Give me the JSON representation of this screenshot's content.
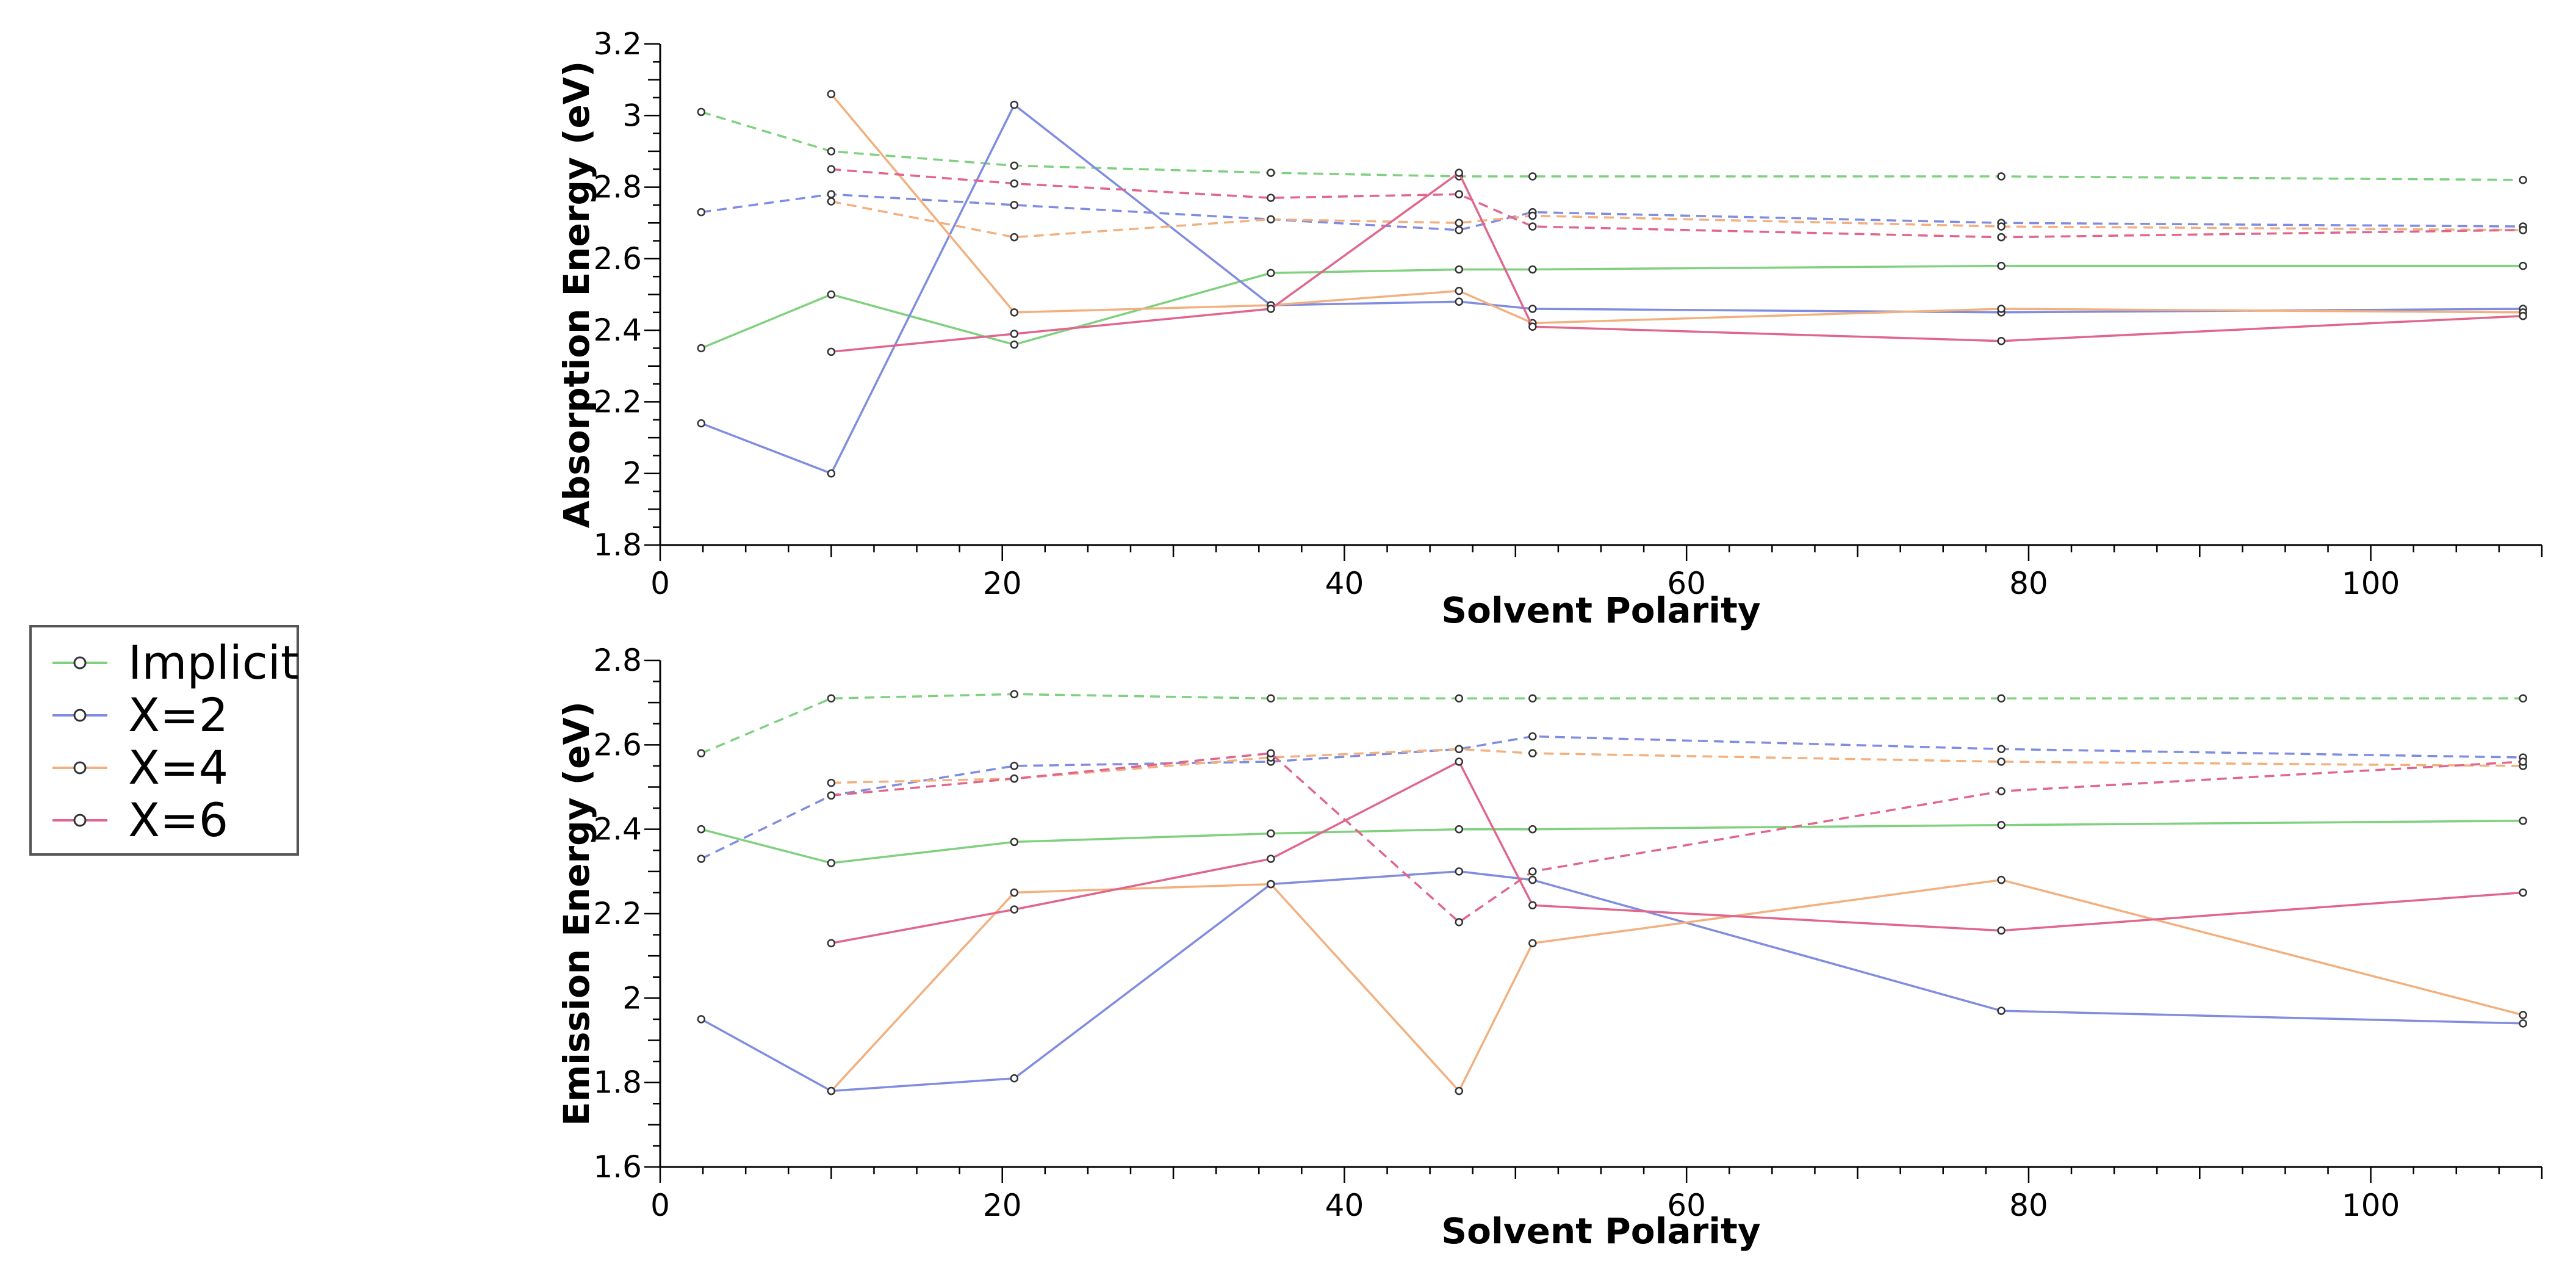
{
  "legend": {
    "entries": [
      {
        "name": "Implicit",
        "color": "#7fd07f"
      },
      {
        "name": "X=2",
        "color": "#7f8ce0"
      },
      {
        "name": "X=4",
        "color": "#f2b07f"
      },
      {
        "name": "X=6",
        "color": "#e0668c"
      }
    ]
  },
  "chart_data": [
    {
      "type": "line",
      "title": "",
      "xlabel": "Solvent Polarity",
      "ylabel": "Absorption Energy (eV)",
      "xlim": [
        0,
        110
      ],
      "ylim": [
        1.8,
        3.2
      ],
      "xticks": [
        0,
        20,
        40,
        60,
        80,
        100
      ],
      "yticks": [
        1.8,
        2,
        2.2,
        2.4,
        2.6,
        2.8,
        3,
        3.2
      ],
      "ytick_labels": [
        "1.8",
        "2",
        "2.2",
        "2.4",
        "2.6",
        "2.8",
        "3",
        "3.2"
      ],
      "series": [
        {
          "name": "Implicit",
          "style": "solid",
          "color": "#7fd07f",
          "x": [
            2.4,
            10.0,
            20.7,
            35.7,
            46.7,
            51.0,
            78.4,
            108.9
          ],
          "y": [
            2.35,
            2.5,
            2.36,
            2.56,
            2.57,
            2.57,
            2.58,
            2.58
          ]
        },
        {
          "name": "Implicit",
          "style": "dashed",
          "color": "#7fd07f",
          "x": [
            2.4,
            10.0,
            20.7,
            35.7,
            46.7,
            51.0,
            78.4,
            108.9
          ],
          "y": [
            3.01,
            2.9,
            2.86,
            2.84,
            2.83,
            2.83,
            2.83,
            2.82
          ]
        },
        {
          "name": "X=2",
          "style": "solid",
          "color": "#7f8ce0",
          "x": [
            2.4,
            10.0,
            20.7,
            35.7,
            46.7,
            51.0,
            78.4,
            108.9
          ],
          "y": [
            2.14,
            2.0,
            3.03,
            2.47,
            2.48,
            2.46,
            2.45,
            2.46
          ]
        },
        {
          "name": "X=2",
          "style": "dashed",
          "color": "#7f8ce0",
          "x": [
            2.4,
            10.0,
            20.7,
            35.7,
            46.7,
            51.0,
            78.4,
            108.9
          ],
          "y": [
            2.73,
            2.78,
            2.75,
            2.71,
            2.68,
            2.73,
            2.7,
            2.69
          ]
        },
        {
          "name": "X=4",
          "style": "solid",
          "color": "#f2b07f",
          "x": [
            10.0,
            20.7,
            35.7,
            46.7,
            51.0,
            78.4,
            108.9
          ],
          "y": [
            3.06,
            2.45,
            2.47,
            2.51,
            2.42,
            2.46,
            2.45
          ]
        },
        {
          "name": "X=4",
          "style": "dashed",
          "color": "#f2b07f",
          "x": [
            10.0,
            20.7,
            35.7,
            46.7,
            51.0,
            78.4,
            108.9
          ],
          "y": [
            2.76,
            2.66,
            2.71,
            2.7,
            2.72,
            2.69,
            2.68
          ]
        },
        {
          "name": "X=6",
          "style": "solid",
          "color": "#e0668c",
          "x": [
            10.0,
            20.7,
            35.7,
            46.7,
            51.0,
            78.4,
            108.9
          ],
          "y": [
            2.34,
            2.39,
            2.46,
            2.84,
            2.41,
            2.37,
            2.44
          ]
        },
        {
          "name": "X=6",
          "style": "dashed",
          "color": "#e0668c",
          "x": [
            10.0,
            20.7,
            35.7,
            46.7,
            51.0,
            78.4,
            108.9
          ],
          "y": [
            2.85,
            2.81,
            2.77,
            2.78,
            2.69,
            2.66,
            2.68
          ]
        }
      ]
    },
    {
      "type": "line",
      "title": "",
      "xlabel": "Solvent Polarity",
      "ylabel": "Emission Energy (eV)",
      "xlim": [
        0,
        110
      ],
      "ylim": [
        1.6,
        2.8
      ],
      "xticks": [
        0,
        20,
        40,
        60,
        80,
        100
      ],
      "yticks": [
        1.6,
        1.8,
        2,
        2.2,
        2.4,
        2.6,
        2.8
      ],
      "ytick_labels": [
        "1.6",
        "1.8",
        "2",
        "2.2",
        "2.4",
        "2.6",
        "2.8"
      ],
      "series": [
        {
          "name": "Implicit",
          "style": "solid",
          "color": "#7fd07f",
          "x": [
            2.4,
            10.0,
            20.7,
            35.7,
            46.7,
            51.0,
            78.4,
            108.9
          ],
          "y": [
            2.4,
            2.32,
            2.37,
            2.39,
            2.4,
            2.4,
            2.41,
            2.42
          ]
        },
        {
          "name": "Implicit",
          "style": "dashed",
          "color": "#7fd07f",
          "x": [
            2.4,
            10.0,
            20.7,
            35.7,
            46.7,
            51.0,
            78.4,
            108.9
          ],
          "y": [
            2.58,
            2.71,
            2.72,
            2.71,
            2.71,
            2.71,
            2.71,
            2.71
          ]
        },
        {
          "name": "X=2",
          "style": "solid",
          "color": "#7f8ce0",
          "x": [
            2.4,
            10.0,
            20.7,
            35.7,
            46.7,
            51.0,
            78.4,
            108.9
          ],
          "y": [
            1.95,
            1.78,
            1.81,
            2.27,
            2.3,
            2.28,
            1.97,
            1.94
          ]
        },
        {
          "name": "X=2",
          "style": "dashed",
          "color": "#7f8ce0",
          "x": [
            2.4,
            10.0,
            20.7,
            35.7,
            46.7,
            51.0,
            78.4,
            108.9
          ],
          "y": [
            2.33,
            2.48,
            2.55,
            2.56,
            2.59,
            2.62,
            2.59,
            2.57
          ]
        },
        {
          "name": "X=4",
          "style": "solid",
          "color": "#f2b07f",
          "x": [
            10.0,
            20.7,
            35.7,
            46.7,
            51.0,
            78.4,
            108.9
          ],
          "y": [
            1.78,
            2.25,
            2.27,
            1.78,
            2.13,
            2.28,
            1.96
          ]
        },
        {
          "name": "X=4",
          "style": "dashed",
          "color": "#f2b07f",
          "x": [
            10.0,
            20.7,
            35.7,
            46.7,
            51.0,
            78.4,
            108.9
          ],
          "y": [
            2.51,
            2.52,
            2.57,
            2.59,
            2.58,
            2.56,
            2.55
          ]
        },
        {
          "name": "X=6",
          "style": "solid",
          "color": "#e0668c",
          "x": [
            10.0,
            20.7,
            35.7,
            46.7,
            51.0,
            78.4,
            108.9
          ],
          "y": [
            2.13,
            2.21,
            2.33,
            2.56,
            2.22,
            2.16,
            2.25
          ]
        },
        {
          "name": "X=6",
          "style": "dashed",
          "color": "#e0668c",
          "x": [
            10.0,
            20.7,
            35.7,
            46.7,
            51.0,
            78.4,
            108.9
          ],
          "y": [
            2.48,
            2.52,
            2.58,
            2.18,
            2.3,
            2.49,
            2.56
          ]
        }
      ]
    }
  ]
}
